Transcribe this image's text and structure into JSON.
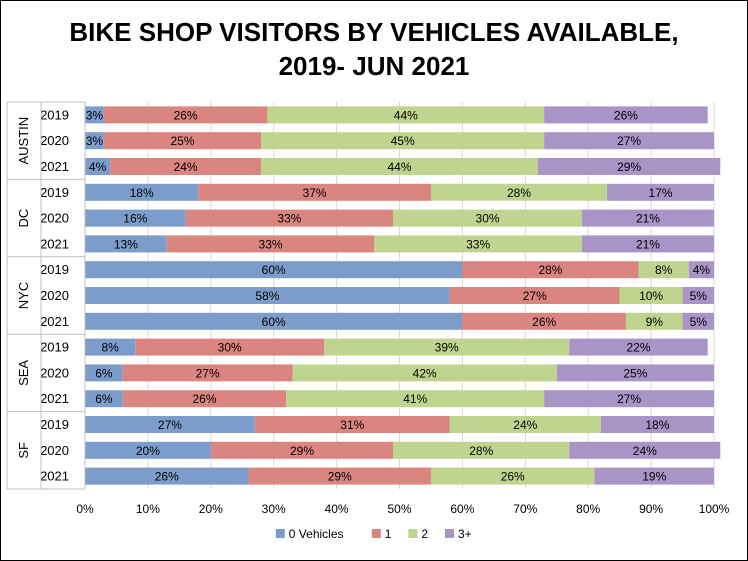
{
  "chart_data": {
    "type": "bar",
    "orientation": "horizontal",
    "stacked": "percent",
    "title_lines": [
      "BIKE SHOP VISITORS BY VEHICLES AVAILABLE,",
      "2019- JUN 2021"
    ],
    "groups": [
      {
        "name": "AUSTIN",
        "years": [
          "2019",
          "2020",
          "2021"
        ]
      },
      {
        "name": "DC",
        "years": [
          "2019",
          "2020",
          "2021"
        ]
      },
      {
        "name": "NYC",
        "years": [
          "2019",
          "2020",
          "2021"
        ]
      },
      {
        "name": "SEA",
        "years": [
          "2019",
          "2020",
          "2021"
        ]
      },
      {
        "name": "SF",
        "years": [
          "2019",
          "2020",
          "2021"
        ]
      }
    ],
    "series": [
      {
        "name": "0 Vehicles",
        "color": "#7c9dcb",
        "values": [
          3,
          3,
          4,
          18,
          16,
          13,
          60,
          58,
          60,
          8,
          6,
          6,
          27,
          20,
          26
        ]
      },
      {
        "name": "1",
        "color": "#db8580",
        "values": [
          26,
          25,
          24,
          37,
          33,
          33,
          28,
          27,
          26,
          30,
          27,
          26,
          31,
          29,
          29
        ]
      },
      {
        "name": "2",
        "color": "#bfd58f",
        "values": [
          44,
          45,
          44,
          28,
          30,
          33,
          8,
          10,
          9,
          39,
          42,
          41,
          24,
          28,
          26
        ]
      },
      {
        "name": "3+",
        "color": "#a894c6",
        "values": [
          26,
          27,
          29,
          17,
          21,
          21,
          4,
          5,
          5,
          22,
          25,
          27,
          18,
          24,
          19
        ]
      }
    ],
    "xlim": [
      0,
      100
    ],
    "x_ticks": [
      "0%",
      "10%",
      "20%",
      "30%",
      "40%",
      "50%",
      "60%",
      "70%",
      "80%",
      "90%",
      "100%"
    ],
    "grid": "vertical",
    "legend_position": "bottom"
  }
}
